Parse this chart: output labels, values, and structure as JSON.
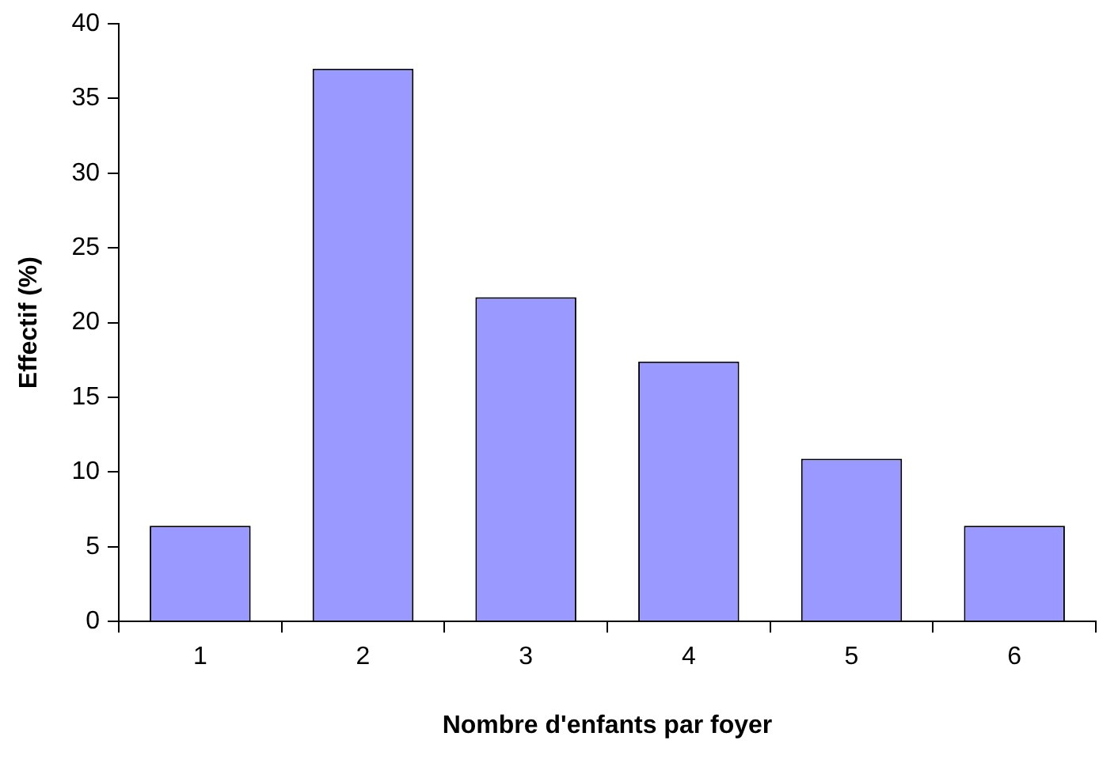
{
  "chart_data": {
    "type": "bar",
    "xlabel": "Nombre d'enfants par foyer",
    "ylabel": "Effectif (%)",
    "categories": [
      "1",
      "2",
      "3",
      "4",
      "5",
      "6"
    ],
    "values": [
      6.4,
      37,
      21.7,
      17.4,
      10.9,
      6.4
    ],
    "color": "#9999ff",
    "ylim": [
      0,
      40
    ],
    "yticks": [
      0,
      5,
      10,
      15,
      20,
      25,
      30,
      35,
      40
    ],
    "grid": false,
    "legend": false
  }
}
